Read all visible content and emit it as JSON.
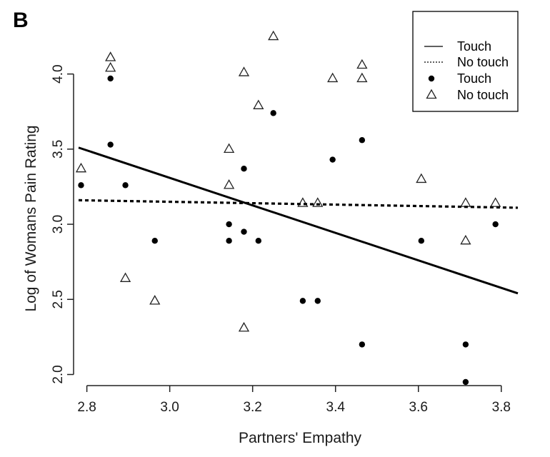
{
  "panel_label": "B",
  "chart_data": {
    "type": "scatter",
    "title": "",
    "xlabel": "Partners' Empathy",
    "ylabel": "Log of Womans Pain Rating",
    "xlim": [
      2.78,
      3.84
    ],
    "ylim": [
      1.95,
      4.35
    ],
    "x_ticks": [
      2.8,
      3.0,
      3.2,
      3.4,
      3.6,
      3.8
    ],
    "x_tick_labels": [
      "2.8",
      "3.0",
      "3.2",
      "3.4",
      "3.6",
      "3.8"
    ],
    "y_ticks": [
      2.0,
      2.5,
      3.0,
      3.5,
      4.0
    ],
    "y_tick_labels": [
      "2.0",
      "2.5",
      "3.0",
      "3.5",
      "4.0"
    ],
    "grid": false,
    "legend_position": "top-right",
    "series": [
      {
        "name": "Touch",
        "kind": "points",
        "marker": "filled-circle",
        "points": [
          [
            2.786,
            3.26
          ],
          [
            2.857,
            3.97
          ],
          [
            2.857,
            3.53
          ],
          [
            2.893,
            3.26
          ],
          [
            2.964,
            2.89
          ],
          [
            3.143,
            3.0
          ],
          [
            3.143,
            2.89
          ],
          [
            3.179,
            3.37
          ],
          [
            3.179,
            2.95
          ],
          [
            3.214,
            2.89
          ],
          [
            3.25,
            3.74
          ],
          [
            3.321,
            2.49
          ],
          [
            3.357,
            2.49
          ],
          [
            3.393,
            3.43
          ],
          [
            3.464,
            3.56
          ],
          [
            3.464,
            2.2
          ],
          [
            3.607,
            2.89
          ],
          [
            3.714,
            2.2
          ],
          [
            3.714,
            1.95
          ],
          [
            3.786,
            3.0
          ]
        ]
      },
      {
        "name": "No touch",
        "kind": "points",
        "marker": "open-triangle",
        "points": [
          [
            2.786,
            3.37
          ],
          [
            2.857,
            4.11
          ],
          [
            2.857,
            4.04
          ],
          [
            2.893,
            2.64
          ],
          [
            2.964,
            2.49
          ],
          [
            3.143,
            3.5
          ],
          [
            3.143,
            3.26
          ],
          [
            3.179,
            4.01
          ],
          [
            3.179,
            2.31
          ],
          [
            3.214,
            3.79
          ],
          [
            3.25,
            4.25
          ],
          [
            3.321,
            3.14
          ],
          [
            3.357,
            3.14
          ],
          [
            3.393,
            3.97
          ],
          [
            3.464,
            4.06
          ],
          [
            3.464,
            3.97
          ],
          [
            3.607,
            3.3
          ],
          [
            3.714,
            3.14
          ],
          [
            3.714,
            2.89
          ],
          [
            3.786,
            3.14
          ]
        ]
      },
      {
        "name": "Touch",
        "kind": "line",
        "linestyle": "solid",
        "x": [
          2.78,
          3.84
        ],
        "y": [
          3.51,
          2.54
        ]
      },
      {
        "name": "No touch",
        "kind": "line",
        "linestyle": "dashed",
        "x": [
          2.78,
          3.84
        ],
        "y": [
          3.16,
          3.11
        ]
      }
    ],
    "legend": [
      {
        "label": "Touch",
        "symbol": "solid-line"
      },
      {
        "label": "No touch",
        "symbol": "dotted-line"
      },
      {
        "label": "Touch",
        "symbol": "filled-circle"
      },
      {
        "label": "No touch",
        "symbol": "open-triangle"
      }
    ]
  }
}
